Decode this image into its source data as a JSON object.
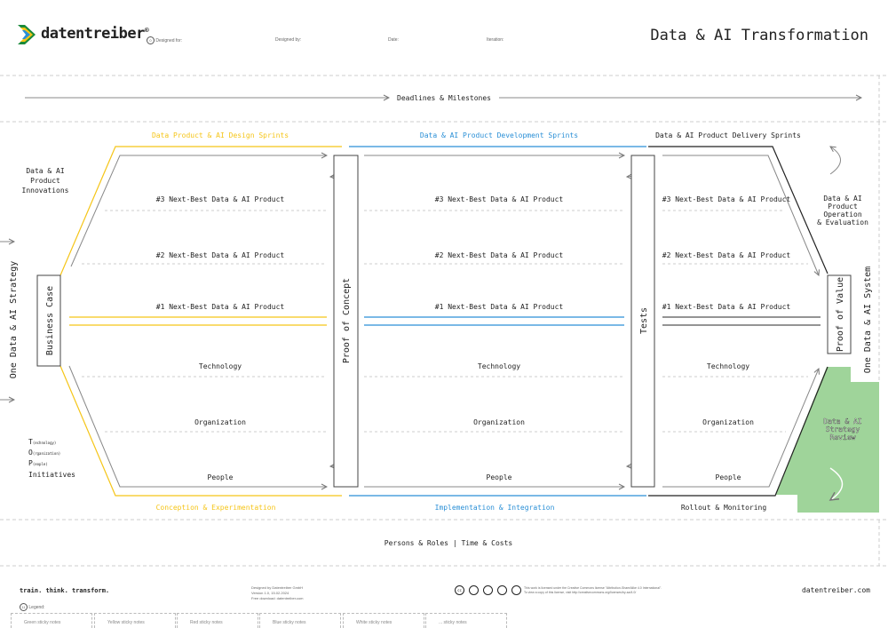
{
  "header": {
    "brand": "datentreiber",
    "brand_mark": "®",
    "title": "Data & AI Transformation",
    "fields": [
      {
        "icon": "0",
        "label": "Designed for:"
      },
      {
        "label": "Designed by:"
      },
      {
        "label": "Date:"
      },
      {
        "label": "Iteration:"
      }
    ]
  },
  "lanes": {
    "deadlines": {
      "num": "2",
      "label": "Deadlines & Milestones"
    },
    "persons": {
      "num": "15",
      "label": "Persons & Roles | Time & Costs"
    }
  },
  "phases": {
    "design": {
      "num": "6",
      "label": "Data Product & AI Design Sprints",
      "bottom": "Conception & Experimentation",
      "color": "#f5c518"
    },
    "development": {
      "num": "7",
      "label": "Data & AI Product Development Sprints",
      "bottom": "Implementation & Integration",
      "color": "#2a8fd6"
    },
    "delivery": {
      "num": "8",
      "label": "Data & AI Product Delivery Sprints",
      "bottom": "Rollout & Monitoring",
      "color": "#222222"
    }
  },
  "rows": [
    {
      "label": "#3 Next-Best Data & AI Product"
    },
    {
      "label": "#2 Next-Best Data & AI Product"
    },
    {
      "label": "#1 Next-Best Data & AI Product"
    },
    {
      "label": "Technology"
    },
    {
      "label": "Organization"
    },
    {
      "label": "People"
    }
  ],
  "gates": {
    "business_case": "Business Case",
    "proof_of_concept": "Proof of Concept",
    "tests": "Tests",
    "proof_of_value": "Proof of Value"
  },
  "side": {
    "strategy": "One Data & AI Strategy",
    "system": "One Data & AI System",
    "innovations": [
      "Data & AI",
      "Product",
      "Innovations"
    ],
    "top_initiatives": {
      "t": "T",
      "t_sub": "(echnology)",
      "o": "O",
      "o_sub": "(rganization)",
      "p": "P",
      "p_sub": "(eople)",
      "label": "Initiatives"
    },
    "operation": [
      "Data & AI",
      "Product",
      "Operation",
      "& Evaluation"
    ],
    "review": [
      "Data & AI",
      "Strategy",
      "Review"
    ],
    "review_color": "#9fd49a"
  },
  "footer": {
    "tagline": "train. think. transform.",
    "credits": [
      "Designed by Datentreiber GmbH",
      "Version 1.0, 15.02.2024",
      "Free download: datentreiber.com"
    ],
    "license": [
      "This work is licensed under the Creative Commons license \"Attribution-ShareAlike 4.0 International\".",
      "To view a copy of this license, visit http://creativecommons.org/licenses/by-sa/4.0/"
    ],
    "cc_icons": [
      "cc",
      "by",
      "sa",
      "nc",
      "i"
    ],
    "website": "datentreiber.com",
    "legend_num": "11",
    "legend_label": "Legend:",
    "legend": [
      "Green sticky notes",
      "Yellow sticky notes",
      "Red sticky notes",
      "Blue sticky notes",
      "White sticky notes",
      "... sticky notes"
    ]
  }
}
